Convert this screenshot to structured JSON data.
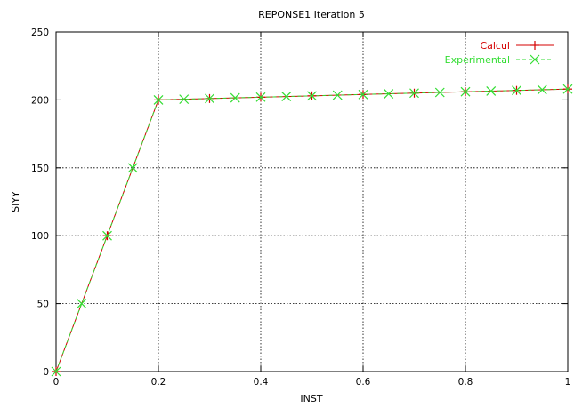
{
  "chart_data": {
    "type": "line",
    "title": "REPONSE1  Iteration 5",
    "xlabel": "INST",
    "ylabel": "SIYY",
    "xlim": [
      0,
      1
    ],
    "ylim": [
      0,
      250
    ],
    "x_ticks": [
      "0",
      "0.2",
      "0.4",
      "0.6",
      "0.8",
      "1"
    ],
    "y_ticks": [
      "0",
      "50",
      "100",
      "150",
      "200",
      "250"
    ],
    "x_tick_values": [
      0,
      0.2,
      0.4,
      0.6,
      0.8,
      1
    ],
    "y_tick_values": [
      0,
      50,
      100,
      150,
      200,
      250
    ],
    "grid": true,
    "legend_position": "top-right",
    "series": [
      {
        "name": "Calcul",
        "color": "#d40000",
        "marker": "plus",
        "line_style": "solid",
        "points": [
          [
            0,
            0
          ],
          [
            0.1,
            100
          ],
          [
            0.2,
            200
          ],
          [
            0.3,
            201
          ],
          [
            0.4,
            202
          ],
          [
            0.5,
            203
          ],
          [
            0.6,
            204
          ],
          [
            0.7,
            205
          ],
          [
            0.8,
            206
          ],
          [
            0.9,
            207
          ],
          [
            1.0,
            208
          ]
        ]
      },
      {
        "name": "Experimental",
        "color": "#33dd33",
        "marker": "x",
        "line_style": "dashed",
        "points": [
          [
            0,
            0
          ],
          [
            0.05,
            50
          ],
          [
            0.1,
            100
          ],
          [
            0.15,
            150
          ],
          [
            0.2,
            200
          ],
          [
            0.25,
            200.5
          ],
          [
            0.3,
            201
          ],
          [
            0.35,
            201.5
          ],
          [
            0.4,
            202
          ],
          [
            0.45,
            202.5
          ],
          [
            0.5,
            203
          ],
          [
            0.55,
            203.5
          ],
          [
            0.6,
            204
          ],
          [
            0.65,
            204.5
          ],
          [
            0.7,
            205
          ],
          [
            0.75,
            205.5
          ],
          [
            0.8,
            206
          ],
          [
            0.85,
            206.5
          ],
          [
            0.9,
            207
          ],
          [
            0.95,
            207.5
          ],
          [
            1.0,
            208
          ]
        ]
      }
    ]
  }
}
